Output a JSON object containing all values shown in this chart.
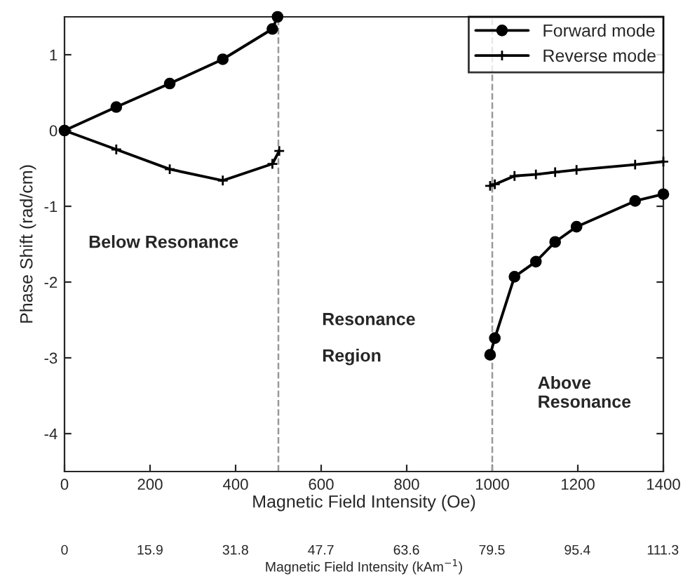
{
  "chart_data": {
    "type": "line",
    "xlabel": "Magnetic Field Intensity (Oe)",
    "ylabel": "Phase Shift (rad/cm)",
    "x2label": "Magnetic Field Intensity (kAm$^{−1}$)",
    "xlim": [
      0,
      1400
    ],
    "xticks": [
      0,
      200,
      400,
      600,
      800,
      1000,
      1200,
      1400
    ],
    "ylim": [
      -4.5,
      1.5
    ],
    "yticks": [
      -4,
      -3,
      -2,
      -1,
      0,
      1
    ],
    "x2lim": [
      0,
      111.4
    ],
    "x2ticks": [
      0,
      15.9,
      31.8,
      47.7,
      63.6,
      79.5,
      95.4,
      111.3
    ],
    "series": [
      {
        "name": "Forward mode",
        "color": "#000000",
        "marker": "circle",
        "x": [
          0,
          121,
          246,
          370,
          486,
          498,
          null,
          995,
          1006,
          1052,
          1102,
          1147,
          1197,
          1334,
          1400
        ],
        "values": [
          0,
          0.31,
          0.62,
          0.94,
          1.34,
          1.5,
          null,
          -2.96,
          -2.74,
          -1.93,
          -1.73,
          -1.47,
          -1.27,
          -0.93,
          -0.84
        ]
      },
      {
        "name": "Reverse mode",
        "color": "#000000",
        "marker": "cross",
        "x": [
          0,
          121,
          246,
          370,
          486,
          502,
          null,
          995,
          1006,
          1052,
          1102,
          1147,
          1197,
          1334,
          1400
        ],
        "values": [
          0,
          -0.25,
          -0.51,
          -0.66,
          -0.44,
          -0.27,
          null,
          -0.73,
          -0.71,
          -0.6,
          -0.58,
          -0.55,
          -0.52,
          -0.45,
          -0.41
        ]
      }
    ],
    "ref_lines": [
      {
        "axis": "x",
        "value": 500,
        "color": "#999999",
        "line_style": "dashed"
      },
      {
        "axis": "x",
        "value": 1000,
        "color": "#999999",
        "line_style": "dashed"
      }
    ],
    "annotations": [
      "Below Resonance",
      "Resonance",
      "Region",
      "Above\nResonance"
    ],
    "legend": "top right",
    "grid": false,
    "line_style": "solid"
  }
}
